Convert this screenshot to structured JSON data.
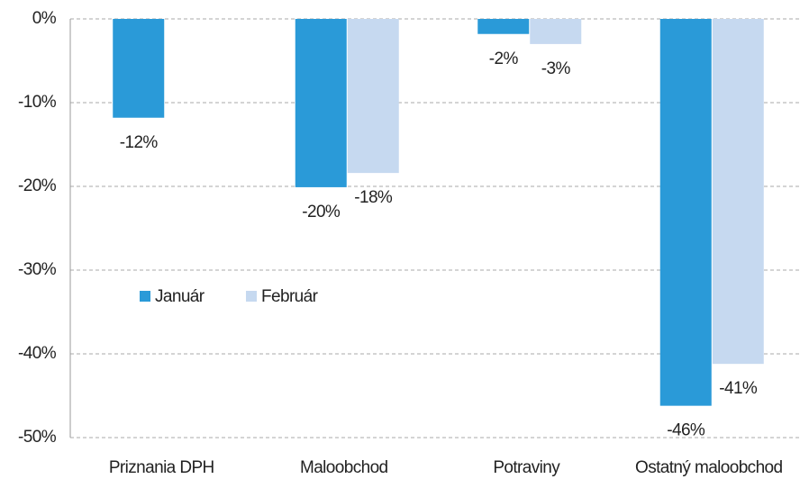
{
  "chart_data": {
    "type": "bar",
    "categories": [
      "Priznania DPH",
      "Maloobchod",
      "Potraviny",
      "Ostatný maloobchod"
    ],
    "series": [
      {
        "name": "Január",
        "color": "#2a9ad8",
        "values": [
          -11.8,
          -20.1,
          -1.8,
          -46.2
        ],
        "value_labels": [
          "-12%",
          "-20%",
          "-2%",
          "-46%"
        ]
      },
      {
        "name": "Február",
        "color": "#c6d9f0",
        "values": [
          null,
          -18.4,
          -3.0,
          -41.2
        ],
        "value_labels": [
          null,
          "-18%",
          "-3%",
          "-41%"
        ]
      }
    ],
    "ylim": [
      -50,
      0
    ],
    "yticks": [
      {
        "value": 0,
        "label": "0%"
      },
      {
        "value": -10,
        "label": "-10%"
      },
      {
        "value": -20,
        "label": "-20%"
      },
      {
        "value": -30,
        "label": "-30%"
      },
      {
        "value": -40,
        "label": "-40%"
      },
      {
        "value": -50,
        "label": "-50%"
      }
    ],
    "grid": true
  }
}
